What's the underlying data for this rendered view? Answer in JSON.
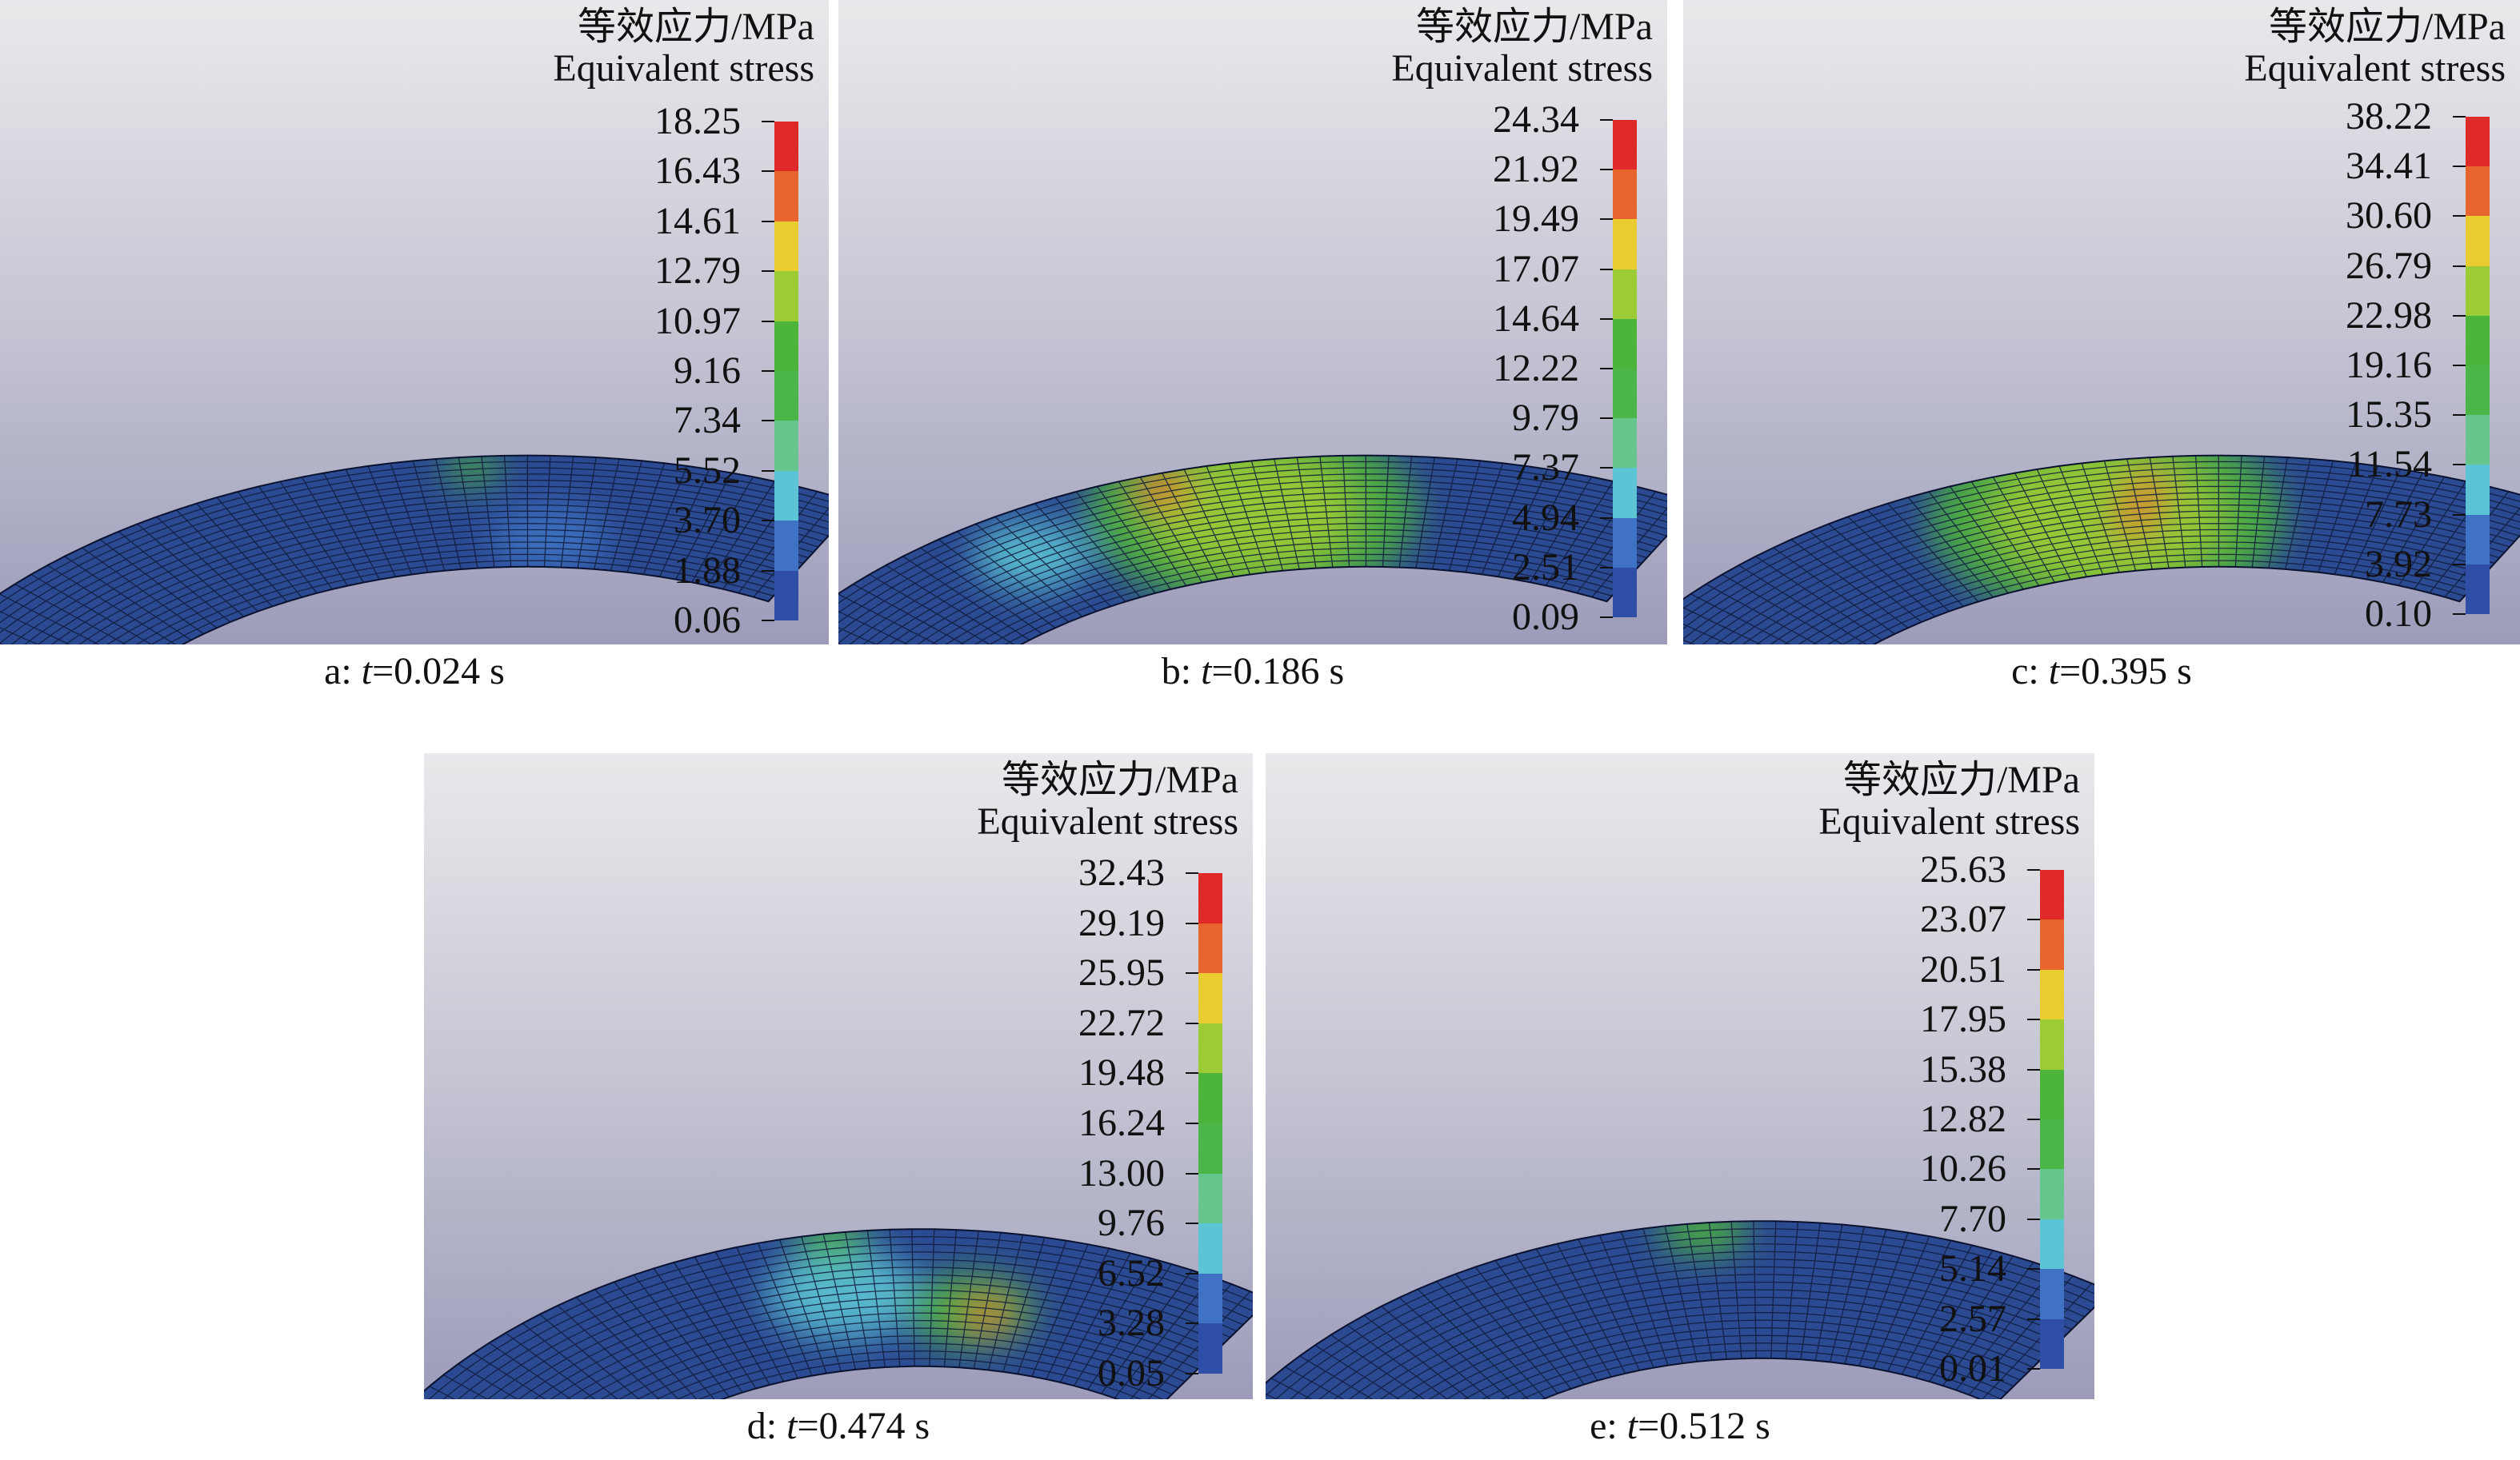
{
  "legend": {
    "title_cn": "等效应力/MPa",
    "title_en": "Equivalent stress"
  },
  "colors": {
    "bands_top_to_bottom": [
      "#e02a2a",
      "#e8652f",
      "#e8cc30",
      "#9ccb36",
      "#4cb43a",
      "#4bb548",
      "#66c58a",
      "#5cc4d4",
      "#3f72c2",
      "#2f4ea6"
    ],
    "mesh_base": "#2b4a92",
    "mesh_line": "#0f1a3a"
  },
  "panels": [
    {
      "id": "a",
      "label_prefix": "a: ",
      "label_var": "t",
      "label_value": "=0.024 s",
      "ticks": [
        "18.25",
        "16.43",
        "14.61",
        "12.79",
        "10.97",
        "9.16",
        "7.34",
        "5.52",
        "3.70",
        "1.88",
        "0.06"
      ]
    },
    {
      "id": "b",
      "label_prefix": "b: ",
      "label_var": "t",
      "label_value": "=0.186 s",
      "ticks": [
        "24.34",
        "21.92",
        "19.49",
        "17.07",
        "14.64",
        "12.22",
        "9.79",
        "7.37",
        "4.94",
        "2.51",
        "0.09"
      ]
    },
    {
      "id": "c",
      "label_prefix": "c: ",
      "label_var": "t",
      "label_value": "=0.395 s",
      "ticks": [
        "38.22",
        "34.41",
        "30.60",
        "26.79",
        "22.98",
        "19.16",
        "15.35",
        "11.54",
        "7.73",
        "3.92",
        "0.10"
      ]
    },
    {
      "id": "d",
      "label_prefix": "d: ",
      "label_var": "t",
      "label_value": "=0.474 s",
      "ticks": [
        "32.43",
        "29.19",
        "25.95",
        "22.72",
        "19.48",
        "16.24",
        "13.00",
        "9.76",
        "6.52",
        "3.28",
        "0.05"
      ]
    },
    {
      "id": "e",
      "label_prefix": "e: ",
      "label_var": "t",
      "label_value": "=0.512 s",
      "ticks": [
        "25.63",
        "23.07",
        "20.51",
        "17.95",
        "15.38",
        "12.82",
        "10.26",
        "7.70",
        "5.14",
        "2.57",
        "0.01"
      ]
    }
  ]
}
